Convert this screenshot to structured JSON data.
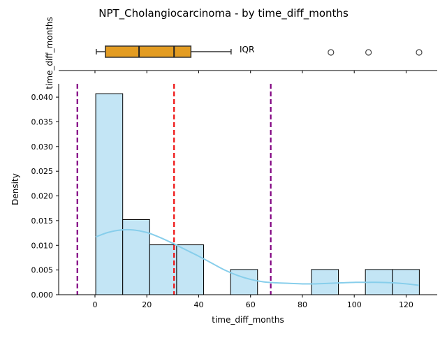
{
  "chart_data": [
    {
      "type": "box",
      "title": "NPT_Cholangiocarcinoma - by time_diff_months",
      "ylabel": "time_diff_months",
      "annotation": "IQR",
      "whisker_low": 0.5,
      "q1": 4,
      "median": 17,
      "mean": 30.5,
      "q3": 37,
      "whisker_high": 52.5,
      "outliers": [
        91,
        105.5,
        125
      ],
      "box_color": "#e39c22"
    },
    {
      "type": "histogram",
      "xlabel": "time_diff_months",
      "ylabel": "Density",
      "xlim": [
        -14,
        132
      ],
      "ylim": [
        0,
        0.0427
      ],
      "xticks": [
        0,
        20,
        40,
        60,
        80,
        100,
        120
      ],
      "yticks": [
        0.0,
        0.005,
        0.01,
        0.015,
        0.02,
        0.025,
        0.03,
        0.035,
        0.04
      ],
      "ytick_labels": [
        "0.000",
        "0.005",
        "0.010",
        "0.015",
        "0.020",
        "0.025",
        "0.030",
        "0.035",
        "0.040"
      ],
      "bin_edges": [
        0.3,
        10.7,
        21.1,
        31.5,
        41.9,
        52.3,
        62.7,
        73.1,
        83.5,
        93.9,
        104.3,
        114.7,
        125.1
      ],
      "density": [
        0.0407,
        0.0152,
        0.0101,
        0.0101,
        0.0,
        0.0051,
        0.0,
        0.0,
        0.0051,
        0.0,
        0.0051,
        0.0051
      ],
      "bar_color": "#c3e5f5",
      "kde": {
        "color": "#87ceeb",
        "x": [
          0.3,
          5,
          10,
          15,
          20,
          25,
          30,
          35,
          40,
          45,
          50,
          55,
          60,
          65,
          70,
          75,
          80,
          85,
          90,
          95,
          100,
          105,
          110,
          115,
          120,
          125
        ],
        "y": [
          0.0117,
          0.0126,
          0.0131,
          0.0131,
          0.0126,
          0.0116,
          0.0104,
          0.0091,
          0.0078,
          0.0064,
          0.005,
          0.0039,
          0.0031,
          0.0026,
          0.0024,
          0.0023,
          0.0022,
          0.0022,
          0.0023,
          0.0024,
          0.0025,
          0.0025,
          0.0025,
          0.0024,
          0.0022,
          0.0019
        ]
      },
      "vlines": [
        {
          "x": 30.5,
          "color": "#ee1111",
          "style": "dashed"
        },
        {
          "x": -6.8,
          "color": "#800080",
          "style": "dashed"
        },
        {
          "x": 67.8,
          "color": "#800080",
          "style": "dashed"
        }
      ]
    }
  ]
}
